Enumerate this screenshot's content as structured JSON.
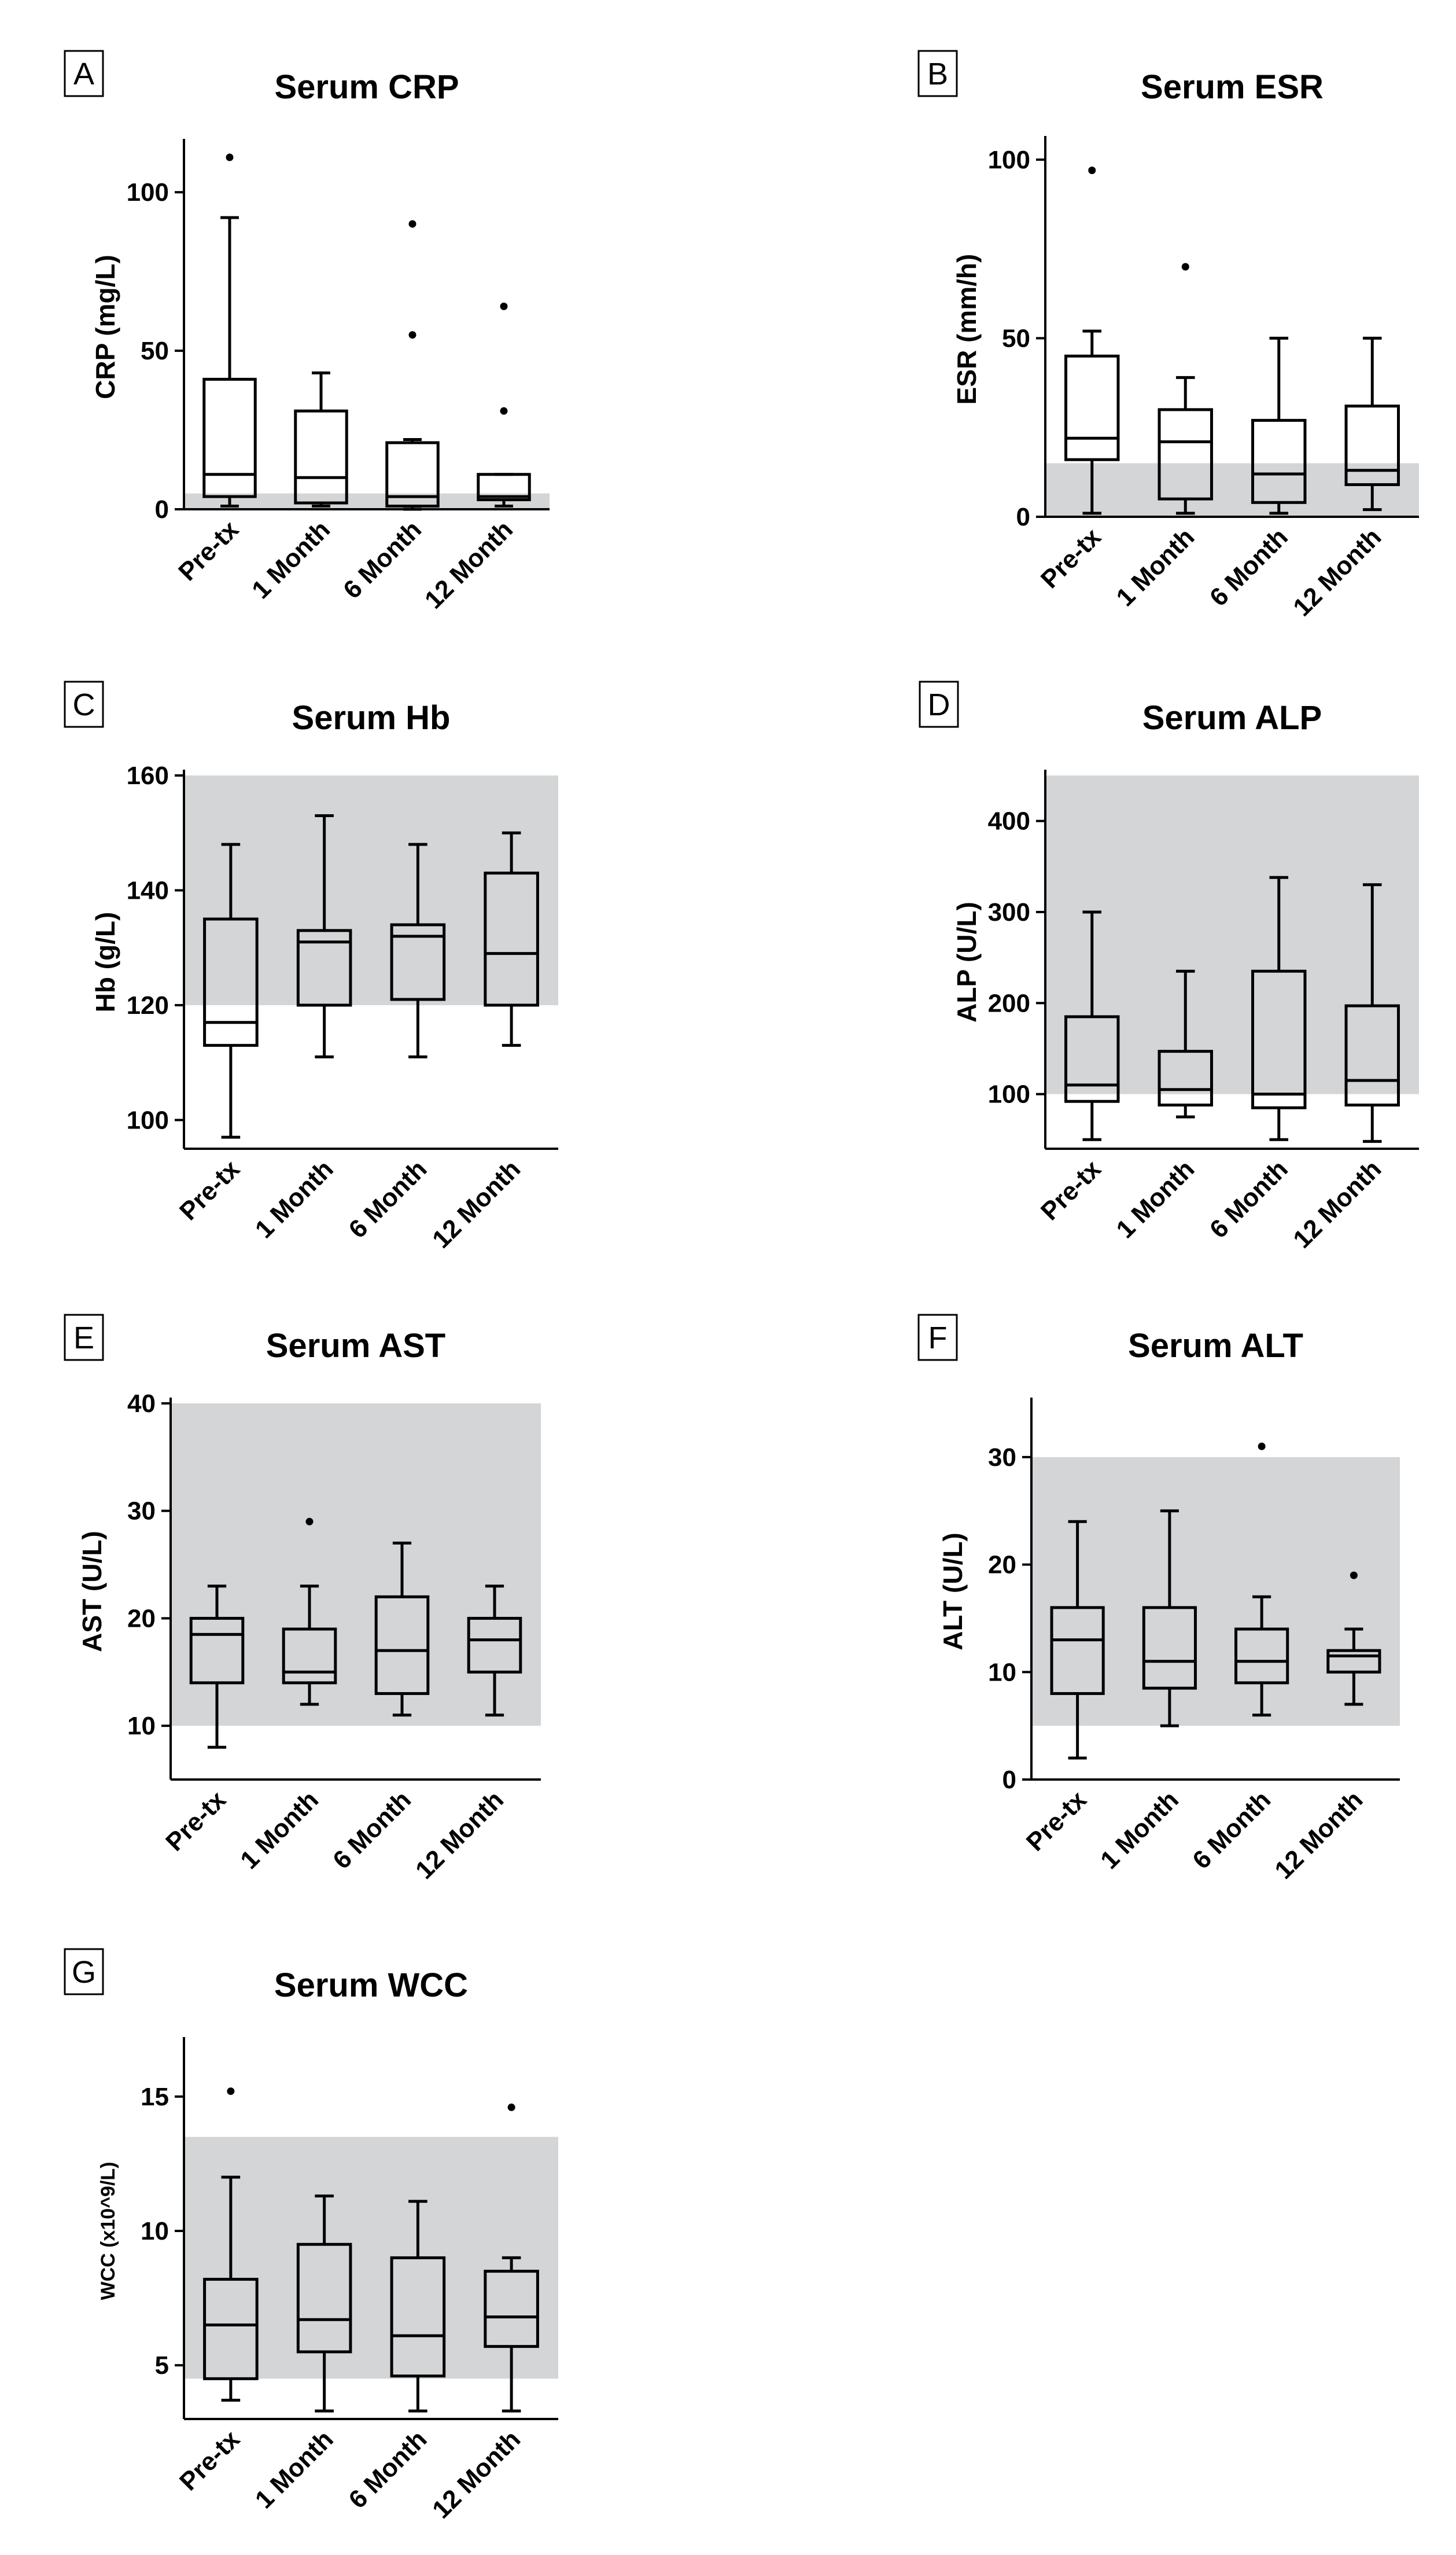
{
  "figure": {
    "shade_color": "#d4d5d7",
    "ink_color": "#000000"
  },
  "chart_data": [
    {
      "panel": "A",
      "type": "box",
      "title": "Serum CRP",
      "ylabel": "CRP (mg/L)",
      "ylim": [
        0,
        115
      ],
      "yticks": [
        0,
        50,
        100
      ],
      "reference_range": [
        0,
        5
      ],
      "categories": [
        "Pre-tx",
        "1 Month",
        "6 Month",
        "12 Month"
      ],
      "boxes": [
        {
          "min": 1,
          "q1": 4,
          "median": 11,
          "q3": 41,
          "max": 92
        },
        {
          "min": 1,
          "q1": 2,
          "median": 10,
          "q3": 31,
          "max": 43
        },
        {
          "min": 0,
          "q1": 1,
          "median": 4,
          "q3": 21,
          "max": 22
        },
        {
          "min": 1,
          "q1": 3,
          "median": 4,
          "q3": 11,
          "max": 11
        }
      ],
      "outliers": [
        [
          111
        ],
        [],
        [
          55,
          90
        ],
        [
          31,
          64
        ]
      ]
    },
    {
      "panel": "B",
      "type": "box",
      "title": "Serum ESR",
      "ylabel": "ESR (mm/h)",
      "ylim": [
        0,
        105
      ],
      "yticks": [
        0,
        50,
        100
      ],
      "reference_range": [
        0,
        15
      ],
      "categories": [
        "Pre-tx",
        "1 Month",
        "6 Month",
        "12 Month"
      ],
      "boxes": [
        {
          "min": 1,
          "q1": 16,
          "median": 22,
          "q3": 45,
          "max": 52
        },
        {
          "min": 1,
          "q1": 5,
          "median": 21,
          "q3": 30,
          "max": 39
        },
        {
          "min": 1,
          "q1": 4,
          "median": 12,
          "q3": 27,
          "max": 50
        },
        {
          "min": 2,
          "q1": 9,
          "median": 13,
          "q3": 31,
          "max": 50
        }
      ],
      "outliers": [
        [
          97
        ],
        [
          70
        ],
        [],
        []
      ]
    },
    {
      "panel": "C",
      "type": "box",
      "title": "Serum Hb",
      "ylabel": "Hb (g/L)",
      "ylim": [
        95,
        160
      ],
      "yticks": [
        100,
        120,
        140,
        160
      ],
      "reference_range": [
        120,
        160
      ],
      "categories": [
        "Pre-tx",
        "1 Month",
        "6 Month",
        "12 Month"
      ],
      "boxes": [
        {
          "min": 97,
          "q1": 113,
          "median": 117,
          "q3": 135,
          "max": 148
        },
        {
          "min": 111,
          "q1": 120,
          "median": 131,
          "q3": 133,
          "max": 153
        },
        {
          "min": 111,
          "q1": 121,
          "median": 132,
          "q3": 134,
          "max": 148
        },
        {
          "min": 113,
          "q1": 120,
          "median": 129,
          "q3": 143,
          "max": 150
        }
      ],
      "outliers": [
        [],
        [],
        [],
        []
      ]
    },
    {
      "panel": "D",
      "type": "box",
      "title": "Serum ALP",
      "ylabel": "ALP (U/L)",
      "ylim": [
        40,
        450
      ],
      "yticks": [
        100,
        200,
        300,
        400
      ],
      "reference_range": [
        100,
        450
      ],
      "categories": [
        "Pre-tx",
        "1 Month",
        "6 Month",
        "12 Month"
      ],
      "boxes": [
        {
          "min": 50,
          "q1": 92,
          "median": 110,
          "q3": 185,
          "max": 300
        },
        {
          "min": 75,
          "q1": 88,
          "median": 105,
          "q3": 147,
          "max": 235
        },
        {
          "min": 50,
          "q1": 85,
          "median": 100,
          "q3": 235,
          "max": 338
        },
        {
          "min": 48,
          "q1": 88,
          "median": 115,
          "q3": 197,
          "max": 330
        }
      ],
      "outliers": [
        [],
        [],
        [],
        []
      ]
    },
    {
      "panel": "E",
      "type": "box",
      "title": "Serum AST",
      "ylabel": "AST (U/L)",
      "ylim": [
        5,
        40
      ],
      "yticks": [
        10,
        20,
        30,
        40
      ],
      "reference_range": [
        10,
        40
      ],
      "categories": [
        "Pre-tx",
        "1 Month",
        "6 Month",
        "12 Month"
      ],
      "boxes": [
        {
          "min": 8,
          "q1": 14,
          "median": 18.5,
          "q3": 20,
          "max": 23
        },
        {
          "min": 12,
          "q1": 14,
          "median": 15,
          "q3": 19,
          "max": 23
        },
        {
          "min": 11,
          "q1": 13,
          "median": 17,
          "q3": 22,
          "max": 27
        },
        {
          "min": 11,
          "q1": 15,
          "median": 18,
          "q3": 20,
          "max": 23
        }
      ],
      "outliers": [
        [],
        [
          29
        ],
        [],
        []
      ]
    },
    {
      "panel": "F",
      "type": "box",
      "title": "Serum ALT",
      "ylabel": "ALT (U/L)",
      "ylim": [
        0,
        35
      ],
      "yticks": [
        0,
        10,
        20,
        30
      ],
      "reference_range": [
        5,
        30
      ],
      "categories": [
        "Pre-tx",
        "1 Month",
        "6 Month",
        "12 Month"
      ],
      "boxes": [
        {
          "min": 2,
          "q1": 8,
          "median": 13,
          "q3": 16,
          "max": 24
        },
        {
          "min": 5,
          "q1": 8.5,
          "median": 11,
          "q3": 16,
          "max": 25
        },
        {
          "min": 6,
          "q1": 9,
          "median": 11,
          "q3": 14,
          "max": 17
        },
        {
          "min": 7,
          "q1": 10,
          "median": 11.5,
          "q3": 12,
          "max": 14
        }
      ],
      "outliers": [
        [],
        [],
        [
          31
        ],
        [
          19
        ]
      ]
    },
    {
      "panel": "G",
      "type": "box",
      "title": "Serum WCC",
      "ylabel": "WCC (x10^9/L)",
      "ylim": [
        3,
        17
      ],
      "yticks": [
        5,
        10,
        15
      ],
      "reference_range": [
        4.5,
        13.5
      ],
      "categories": [
        "Pre-tx",
        "1 Month",
        "6 Month",
        "12 Month"
      ],
      "boxes": [
        {
          "min": 3.7,
          "q1": 4.5,
          "median": 6.5,
          "q3": 8.2,
          "max": 12
        },
        {
          "min": 3.3,
          "q1": 5.5,
          "median": 6.7,
          "q3": 9.5,
          "max": 11.3
        },
        {
          "min": 3.3,
          "q1": 4.6,
          "median": 6.1,
          "q3": 9.0,
          "max": 11.1
        },
        {
          "min": 3.3,
          "q1": 5.7,
          "median": 6.8,
          "q3": 8.5,
          "max": 9.0
        }
      ],
      "outliers": [
        [
          15.2
        ],
        [],
        [],
        [
          14.6
        ]
      ]
    }
  ]
}
